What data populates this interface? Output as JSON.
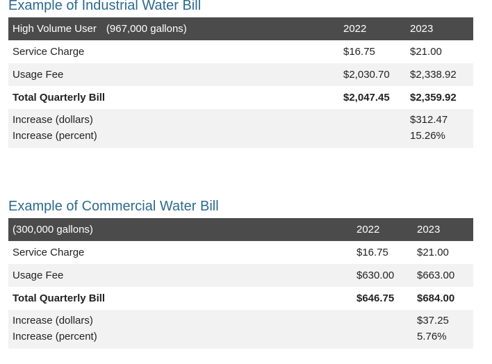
{
  "industrial": {
    "title": "Example of Industrial Water Bill",
    "header": {
      "label": "High Volume User",
      "detail": "(967,000 gallons)",
      "col1": "2022",
      "col2": "2023"
    },
    "rows": [
      {
        "label": "Service Charge",
        "v2022": "$16.75",
        "v2023": "$21.00"
      },
      {
        "label": "Usage Fee",
        "v2022": "$2,030.70",
        "v2023": "$2,338.92"
      },
      {
        "label": "Total Quarterly Bill",
        "v2022": "$2,047.45",
        "v2023": "$2,359.92"
      }
    ],
    "increase": {
      "dollars_label": "Increase (dollars)",
      "dollars_value": "$312.47",
      "percent_label": "Increase (percent)",
      "percent_value": "15.26%"
    }
  },
  "commercial": {
    "title": "Example of Commercial Water Bill",
    "header": {
      "label": "(300,000 gallons)",
      "col1": "2022",
      "col2": "2023"
    },
    "rows": [
      {
        "label": "Service Charge",
        "v2022": "$16.75",
        "v2023": "$21.00"
      },
      {
        "label": "Usage Fee",
        "v2022": "$630.00",
        "v2023": "$663.00"
      },
      {
        "label": "Total Quarterly Bill",
        "v2022": "$646.75",
        "v2023": "$684.00"
      }
    ],
    "increase": {
      "dollars_label": "Increase (dollars)",
      "dollars_value": "$37.25",
      "percent_label": "Increase (percent)",
      "percent_value": "5.76%"
    }
  },
  "colors": {
    "title": "#2c6a8e",
    "header_bg": "#4b4b4b",
    "alt_row_bg": "#f2f2f2"
  }
}
